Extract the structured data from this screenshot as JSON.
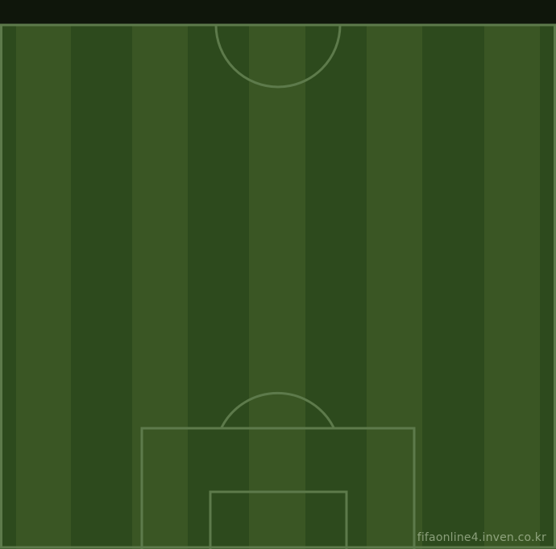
{
  "pitch": {
    "colors": {
      "light_stripe": "#3a5624",
      "dark_stripe": "#2d4a1d",
      "top_bar": "#0f160b",
      "line": "#5d7a4b"
    },
    "watermark": "fifaonline4.inven.co.kr"
  }
}
